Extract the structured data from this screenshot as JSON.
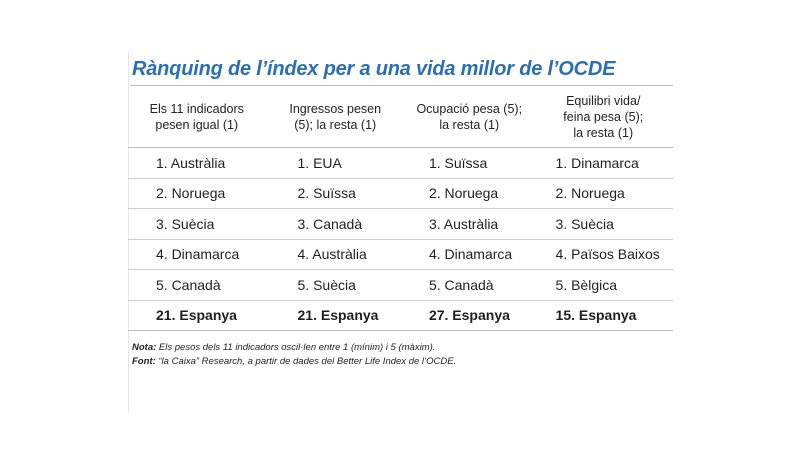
{
  "title": "Rànquing de l’índex per a una vida millor de l’OCDE",
  "table": {
    "headers": [
      [
        "Els 11 indicadors",
        "pesen igual (1)"
      ],
      [
        "Ingressos pesen",
        "(5); la resta (1)"
      ],
      [
        "Ocupació pesa (5);",
        "la resta (1)"
      ],
      [
        "Equilibri vida/",
        "feina pesa (5);",
        "la resta (1)"
      ]
    ],
    "rows": [
      [
        "1. Austràlia",
        "1. EUA",
        "1. Suïssa",
        "1. Dinamarca"
      ],
      [
        "2. Noruega",
        "2. Suïssa",
        "2. Noruega",
        "2. Noruega"
      ],
      [
        "3. Suècia",
        "3. Canadà",
        "3. Austràlia",
        "3. Suècia"
      ],
      [
        "4. Dinamarca",
        "4. Austràlia",
        "4. Dinamarca",
        "4. Països Baixos"
      ],
      [
        "5. Canadà",
        "5. Suècia",
        "5. Canadà",
        "5. Bèlgica"
      ]
    ],
    "highlight_row": [
      "21. Espanya",
      "21. Espanya",
      "27. Espanya",
      "15. Espanya"
    ]
  },
  "notes": {
    "nota_label": "Nota:",
    "nota_text": " Els pesos dels 11 indicadors oscil·len entre 1 (mínim) i 5 (màxim).",
    "font_label": "Font:",
    "font_text": " “la Caixa” Research, a partir de dades del Better Life Index de l’OCDE."
  },
  "colors": {
    "title": "#2a6fb6",
    "rule": "#bdbdbd"
  }
}
